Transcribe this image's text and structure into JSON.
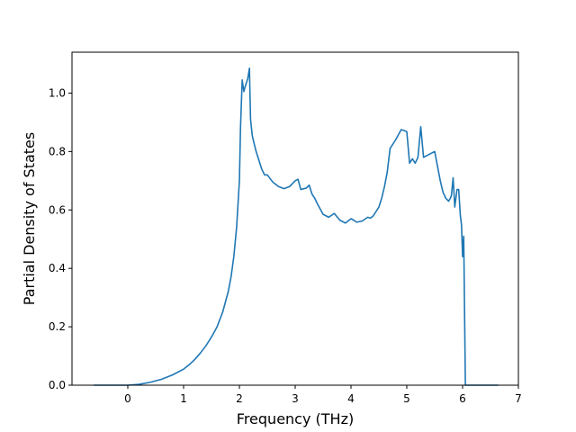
{
  "chart_data": {
    "type": "line",
    "title": "",
    "xlabel": "Frequency (THz)",
    "ylabel": "Partial Density of States",
    "xlim": [
      -1.0,
      7.0
    ],
    "ylim": [
      0.0,
      1.14
    ],
    "xticks": [
      0,
      1,
      2,
      3,
      4,
      5,
      6,
      7
    ],
    "yticks": [
      0.0,
      0.2,
      0.4,
      0.6,
      0.8,
      1.0
    ],
    "xtick_labels": [
      "0",
      "1",
      "2",
      "3",
      "4",
      "5",
      "6",
      "7"
    ],
    "ytick_labels": [
      "0.0",
      "0.2",
      "0.4",
      "0.6",
      "0.8",
      "1.0"
    ],
    "grid": false,
    "legend": "none",
    "series_color": "#1f77b4",
    "series": [
      {
        "x": [
          -0.61,
          0.0,
          0.2,
          0.4,
          0.6,
          0.8,
          1.0,
          1.1,
          1.2,
          1.3,
          1.4,
          1.5,
          1.6,
          1.7,
          1.8,
          1.85,
          1.9,
          1.95,
          2.0,
          2.02,
          2.05,
          2.08,
          2.1,
          2.15,
          2.18,
          2.2,
          2.23,
          2.26,
          2.3,
          2.4,
          2.45,
          2.5,
          2.6,
          2.7,
          2.8,
          2.9,
          2.95,
          3.0,
          3.05,
          3.1,
          3.2,
          3.25,
          3.3,
          3.35,
          3.4,
          3.5,
          3.6,
          3.7,
          3.8,
          3.9,
          4.0,
          4.05,
          4.1,
          4.15,
          4.2,
          4.3,
          4.35,
          4.4,
          4.5,
          4.55,
          4.6,
          4.65,
          4.7,
          4.8,
          4.9,
          4.95,
          5.0,
          5.05,
          5.1,
          5.15,
          5.2,
          5.25,
          5.3,
          5.35,
          5.45,
          5.5,
          5.6,
          5.65,
          5.7,
          5.75,
          5.78,
          5.8,
          5.83,
          5.86,
          5.9,
          5.93,
          5.96,
          5.98,
          6.0,
          6.02,
          6.05,
          6.1,
          6.3,
          6.64
        ],
        "y": [
          0.0,
          0.0,
          0.003,
          0.01,
          0.02,
          0.035,
          0.055,
          0.07,
          0.088,
          0.11,
          0.135,
          0.165,
          0.2,
          0.25,
          0.32,
          0.37,
          0.44,
          0.54,
          0.7,
          0.88,
          1.045,
          1.005,
          1.02,
          1.05,
          1.085,
          0.91,
          0.855,
          0.83,
          0.8,
          0.74,
          0.72,
          0.72,
          0.695,
          0.68,
          0.673,
          0.68,
          0.69,
          0.7,
          0.705,
          0.67,
          0.675,
          0.685,
          0.655,
          0.64,
          0.62,
          0.585,
          0.575,
          0.588,
          0.565,
          0.555,
          0.57,
          0.565,
          0.558,
          0.56,
          0.562,
          0.575,
          0.572,
          0.58,
          0.61,
          0.64,
          0.68,
          0.73,
          0.81,
          0.84,
          0.875,
          0.872,
          0.868,
          0.76,
          0.775,
          0.76,
          0.78,
          0.885,
          0.78,
          0.785,
          0.795,
          0.8,
          0.7,
          0.66,
          0.64,
          0.63,
          0.64,
          0.65,
          0.71,
          0.61,
          0.67,
          0.67,
          0.58,
          0.55,
          0.44,
          0.51,
          0.0,
          0.0,
          0.0,
          0.0
        ]
      }
    ]
  }
}
